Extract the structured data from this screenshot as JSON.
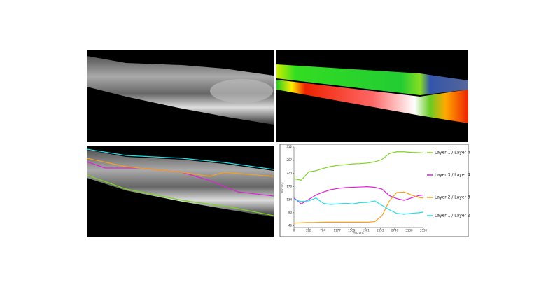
{
  "chart_data": {
    "type": "line",
    "x": [
      0,
      200,
      400,
      600,
      800,
      1000,
      1200,
      1400,
      1600,
      1800,
      2000,
      2200,
      2400,
      2600,
      2800,
      3000,
      3200,
      3400,
      3530
    ],
    "series": [
      {
        "name": "Layer 1 / Layer 4",
        "color": "#7ed321",
        "values": [
          205,
          200,
          228,
          232,
          240,
          246,
          250,
          252,
          255,
          256,
          258,
          262,
          270,
          290,
          296,
          296,
          294,
          293,
          292
        ]
      },
      {
        "name": "Layer 3 / Layer 4",
        "color": "#e020d8",
        "values": [
          140,
          120,
          135,
          150,
          160,
          168,
          172,
          175,
          176,
          177,
          178,
          176,
          170,
          148,
          138,
          132,
          140,
          148,
          150
        ]
      },
      {
        "name": "Layer 2 / Layer 3",
        "color": "#f5a020",
        "values": [
          55,
          56,
          57,
          57,
          58,
          58,
          58,
          58,
          58,
          58,
          58,
          60,
          80,
          130,
          158,
          160,
          150,
          142,
          140
        ]
      },
      {
        "name": "Layer 1 / Layer 2",
        "color": "#20e0e8",
        "values": [
          135,
          128,
          130,
          140,
          122,
          118,
          120,
          122,
          120,
          124,
          125,
          130,
          115,
          100,
          88,
          85,
          88,
          90,
          92
        ]
      }
    ],
    "xlabel": "Microns",
    "ylabel": "Microns",
    "xlim": [
      0,
      3530
    ],
    "ylim": [
      40,
      312
    ],
    "xticks": [
      0,
      392,
      784,
      1177,
      1569,
      1961,
      2353,
      2746,
      3138,
      3530
    ],
    "yticks": [
      46,
      90,
      134,
      178,
      223,
      267,
      312
    ]
  }
}
